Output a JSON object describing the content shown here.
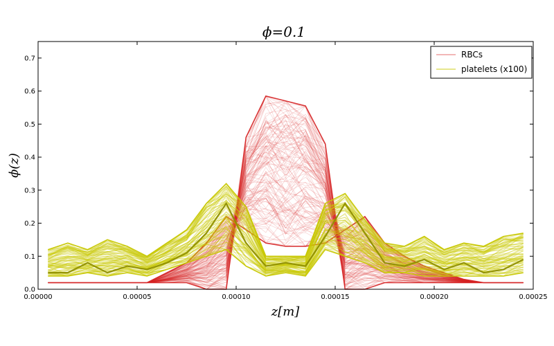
{
  "chart_data": {
    "type": "line",
    "title": "ϕ=0.1",
    "xlabel": "z[m]",
    "ylabel": "ϕ(z)",
    "xlim": [
      0.0,
      0.00025
    ],
    "ylim": [
      0.0,
      0.75
    ],
    "xticks": [
      "0.00000",
      "0.00005",
      "0.00010",
      "0.00015",
      "0.00020",
      "0.00025"
    ],
    "yticks": [
      "0.0",
      "0.1",
      "0.2",
      "0.3",
      "0.4",
      "0.5",
      "0.6",
      "0.7"
    ],
    "legend_position": "top-right",
    "grid": false,
    "series": [
      {
        "name": "RBCs",
        "color": "#d62728",
        "description": "ensemble of many red curves",
        "x": [
          5e-06,
          1.5e-05,
          2.5e-05,
          3.5e-05,
          4.5e-05,
          5.5e-05,
          6.5e-05,
          7.5e-05,
          8.5e-05,
          9.5e-05,
          0.000105,
          0.000115,
          0.000125,
          0.000135,
          0.000145,
          0.000155,
          0.000165,
          0.000175,
          0.000185,
          0.000195,
          0.000205,
          0.000215,
          0.000225,
          0.000235,
          0.000245
        ],
        "y_max": [
          0.02,
          0.02,
          0.02,
          0.02,
          0.02,
          0.02,
          0.02,
          0.02,
          0.0,
          0.0,
          0.46,
          0.585,
          0.57,
          0.555,
          0.44,
          0.0,
          0.0,
          0.02,
          0.02,
          0.02,
          0.02,
          0.02,
          0.02,
          0.02,
          0.02
        ],
        "y_min": [
          0.02,
          0.02,
          0.02,
          0.02,
          0.02,
          0.02,
          0.05,
          0.08,
          0.14,
          0.22,
          0.18,
          0.14,
          0.13,
          0.13,
          0.14,
          0.18,
          0.22,
          0.14,
          0.1,
          0.07,
          0.05,
          0.03,
          0.02,
          0.02,
          0.02
        ]
      },
      {
        "name": "platelets (x100)",
        "color": "#c8c800",
        "description": "ensemble of many yellow-green curves",
        "x": [
          5e-06,
          1.5e-05,
          2.5e-05,
          3.5e-05,
          4.5e-05,
          5.5e-05,
          6.5e-05,
          7.5e-05,
          8.5e-05,
          9.5e-05,
          0.000105,
          0.000115,
          0.000125,
          0.000135,
          0.000145,
          0.000155,
          0.000165,
          0.000175,
          0.000185,
          0.000195,
          0.000205,
          0.000215,
          0.000225,
          0.000235,
          0.000245
        ],
        "y_max": [
          0.12,
          0.14,
          0.12,
          0.15,
          0.13,
          0.1,
          0.14,
          0.18,
          0.26,
          0.32,
          0.25,
          0.1,
          0.1,
          0.1,
          0.26,
          0.29,
          0.21,
          0.14,
          0.13,
          0.16,
          0.12,
          0.14,
          0.13,
          0.16,
          0.17
        ],
        "y_min": [
          0.04,
          0.04,
          0.05,
          0.04,
          0.05,
          0.04,
          0.06,
          0.08,
          0.1,
          0.12,
          0.07,
          0.04,
          0.05,
          0.04,
          0.12,
          0.1,
          0.08,
          0.05,
          0.05,
          0.04,
          0.04,
          0.04,
          0.04,
          0.04,
          0.05
        ],
        "highlight_y": [
          0.05,
          0.05,
          0.08,
          0.05,
          0.07,
          0.06,
          0.08,
          0.11,
          0.17,
          0.26,
          0.14,
          0.07,
          0.08,
          0.07,
          0.16,
          0.26,
          0.17,
          0.08,
          0.07,
          0.09,
          0.06,
          0.08,
          0.05,
          0.06,
          0.09
        ]
      }
    ]
  }
}
